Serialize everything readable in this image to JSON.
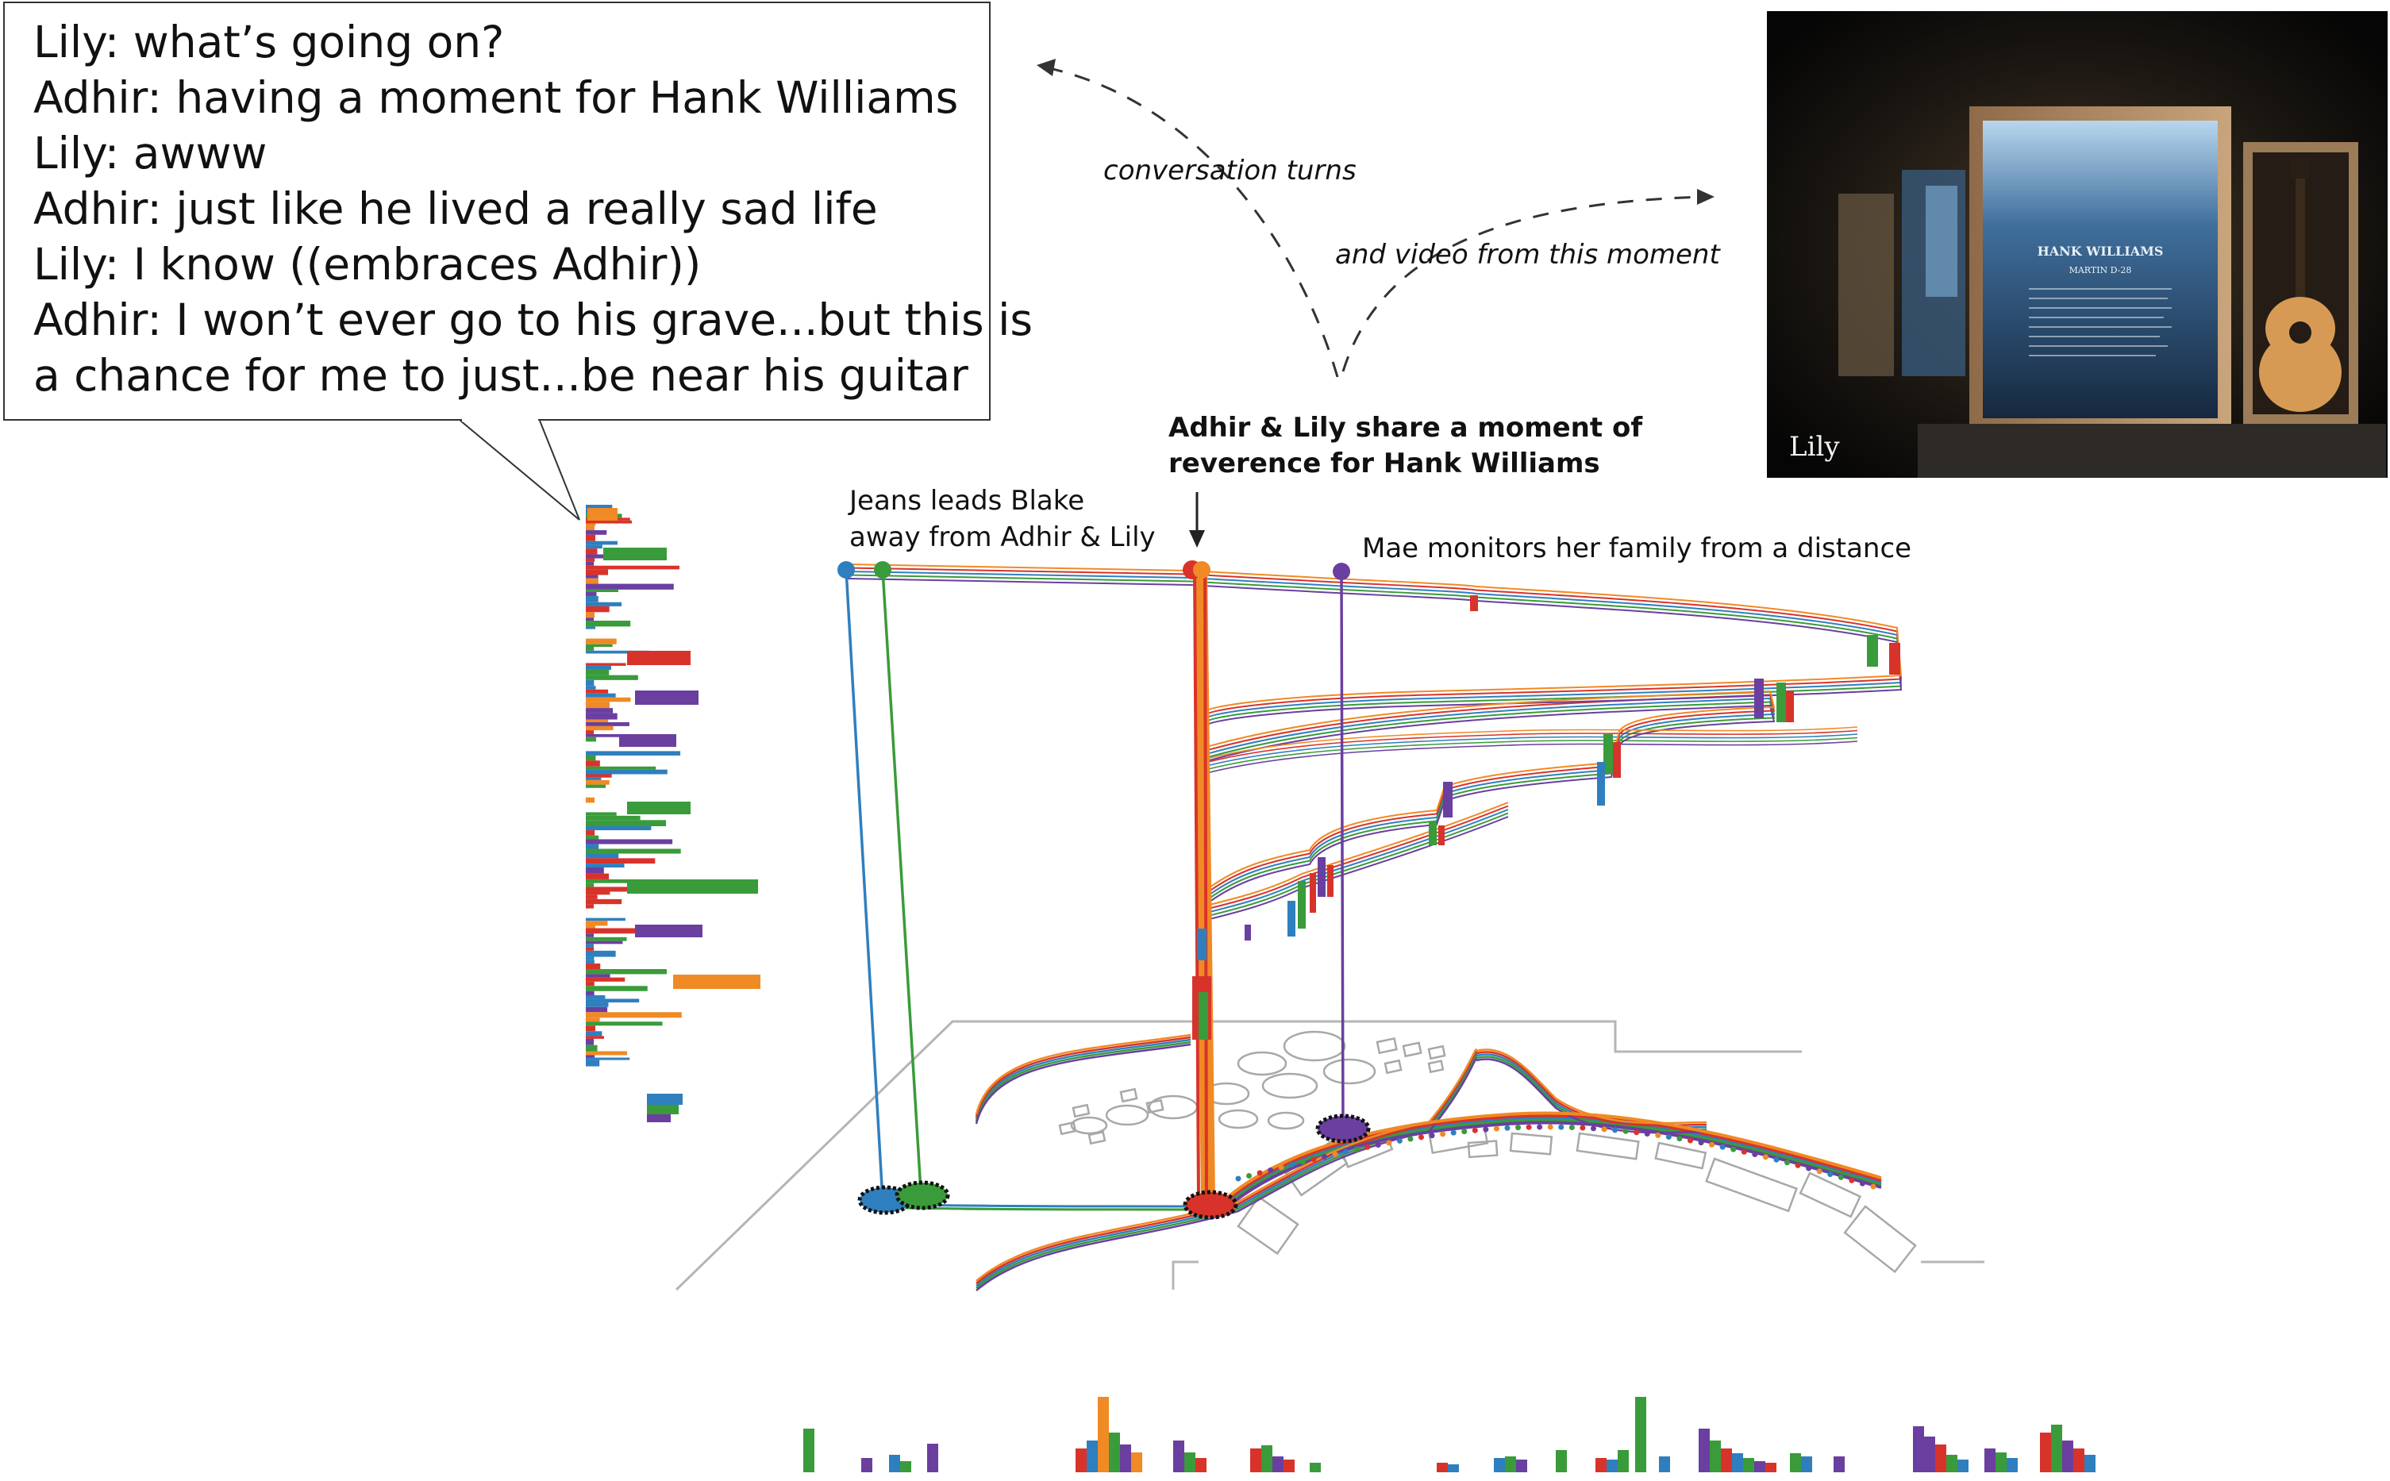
{
  "dialog": {
    "lines": [
      "Lily: what’s going on?",
      "Adhir: having a moment for Hank Williams",
      "Lily: awww",
      "Adhir: just like he lived a really sad life",
      "Lily: I know ((embraces Adhir))",
      "Adhir: I won’t ever go to his grave...but this is",
      "a chance for me to just...be near his guitar"
    ]
  },
  "annotations": {
    "conversation_turns": "conversation turns",
    "video_moment": "and video from this moment",
    "moment_line1": "Adhir & Lily share a moment of",
    "moment_line2": "reverence for Hank Williams",
    "jeans_line1": "Jeans leads Blake",
    "jeans_line2": "away from Adhir & Lily",
    "mae": "Mae monitors her family from a distance"
  },
  "photo": {
    "caption": "Lily",
    "plaque_title": "HANK WILLIAMS",
    "plaque_sub": "MARTIN D-28"
  },
  "colors": {
    "blue": "#2f7fbf",
    "green": "#3a9b3a",
    "red": "#d8332a",
    "purple": "#6a3fa0",
    "orange": "#f08a24",
    "gray": "#9a9a9a"
  }
}
